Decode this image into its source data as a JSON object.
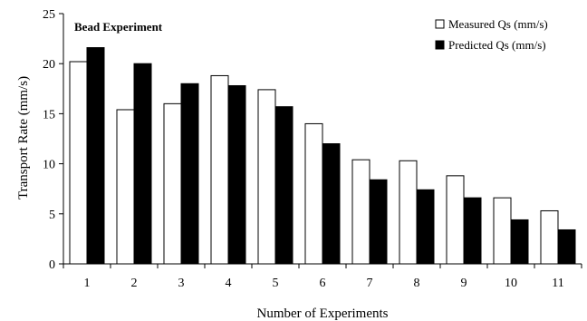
{
  "chart_data": {
    "type": "bar",
    "title": "Bead Experiment",
    "xlabel": "Number of Experiments",
    "ylabel": "Transport Rate (mm/s)",
    "ylim": [
      0,
      25
    ],
    "yticks": [
      "0",
      "5",
      "10",
      "15",
      "20",
      "25"
    ],
    "categories": [
      "1",
      "2",
      "3",
      "4",
      "5",
      "6",
      "7",
      "8",
      "9",
      "10",
      "11"
    ],
    "series": [
      {
        "name": "Measured Qs (mm/s)",
        "color": "#ffffff",
        "values": [
          20.2,
          15.4,
          16.0,
          18.8,
          17.4,
          14.0,
          10.4,
          10.3,
          8.8,
          6.6,
          5.3
        ]
      },
      {
        "name": "Predicted Qs (mm/s)",
        "color": "#000000",
        "values": [
          21.6,
          20.0,
          18.0,
          17.8,
          15.7,
          12.0,
          8.4,
          7.4,
          6.6,
          4.4,
          3.4
        ]
      }
    ],
    "legend_position": "top-right",
    "grid": false
  }
}
